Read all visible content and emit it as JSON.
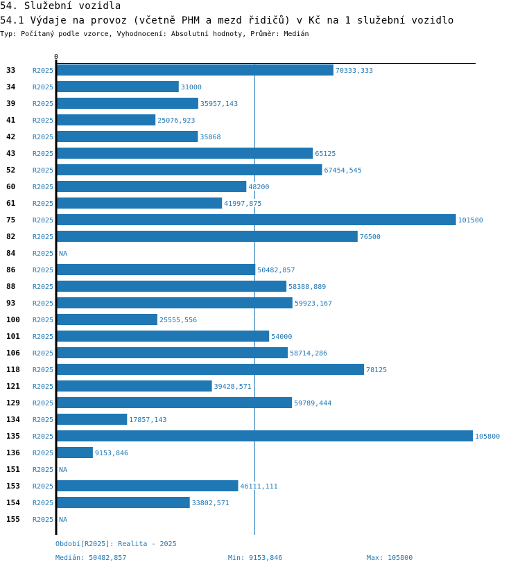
{
  "header": {
    "section_title": "54. Služební vozidla",
    "chart_title": "54.1 Výdaje na provoz (včetně PHM a mezd řidičů) v Kč na 1 služební vozidlo",
    "subtitle": "Typ: Počítaný podle vzorce, Vyhodnocení: Absolutní hodnoty, Průměr: Medián"
  },
  "footer": {
    "period": "Období[R2025]: Realita - 2025",
    "median": "Medián: 50482,857",
    "min": "Min: 9153,846",
    "max": "Max: 105800"
  },
  "colors": {
    "bar": "#1f77b4",
    "text_accent": "#1f77b4",
    "axis": "#000000"
  },
  "chart_data": {
    "type": "bar",
    "orientation": "horizontal",
    "title": "54.1 Výdaje na provoz (včetně PHM a mezd řidičů) v Kč na 1 služební vozidlo",
    "xlabel": "",
    "ylabel": "",
    "x_tick_labels": [
      "0"
    ],
    "xlim": [
      0,
      105800
    ],
    "grid": false,
    "reference_line": {
      "name": "Medián",
      "value": 50482.857
    },
    "series": [
      {
        "name": "R2025",
        "period": "R2025"
      }
    ],
    "rows": [
      {
        "id": "33",
        "period": "R2025",
        "value": 70333.333,
        "label": "70333,333"
      },
      {
        "id": "34",
        "period": "R2025",
        "value": 31000,
        "label": "31000"
      },
      {
        "id": "39",
        "period": "R2025",
        "value": 35957.143,
        "label": "35957,143"
      },
      {
        "id": "41",
        "period": "R2025",
        "value": 25076.923,
        "label": "25076,923"
      },
      {
        "id": "42",
        "period": "R2025",
        "value": 35868,
        "label": "35868"
      },
      {
        "id": "43",
        "period": "R2025",
        "value": 65125,
        "label": "65125"
      },
      {
        "id": "52",
        "period": "R2025",
        "value": 67454.545,
        "label": "67454,545"
      },
      {
        "id": "60",
        "period": "R2025",
        "value": 48200,
        "label": "48200"
      },
      {
        "id": "61",
        "period": "R2025",
        "value": 41997.875,
        "label": "41997,875"
      },
      {
        "id": "75",
        "period": "R2025",
        "value": 101500,
        "label": "101500"
      },
      {
        "id": "82",
        "period": "R2025",
        "value": 76500,
        "label": "76500"
      },
      {
        "id": "84",
        "period": "R2025",
        "value": null,
        "label": "NA"
      },
      {
        "id": "86",
        "period": "R2025",
        "value": 50482.857,
        "label": "50482,857"
      },
      {
        "id": "88",
        "period": "R2025",
        "value": 58388.889,
        "label": "58388,889"
      },
      {
        "id": "93",
        "period": "R2025",
        "value": 59923.167,
        "label": "59923,167"
      },
      {
        "id": "100",
        "period": "R2025",
        "value": 25555.556,
        "label": "25555,556"
      },
      {
        "id": "101",
        "period": "R2025",
        "value": 54000,
        "label": "54000"
      },
      {
        "id": "106",
        "period": "R2025",
        "value": 58714.286,
        "label": "58714,286"
      },
      {
        "id": "118",
        "period": "R2025",
        "value": 78125,
        "label": "78125"
      },
      {
        "id": "121",
        "period": "R2025",
        "value": 39428.571,
        "label": "39428,571"
      },
      {
        "id": "129",
        "period": "R2025",
        "value": 59789.444,
        "label": "59789,444"
      },
      {
        "id": "134",
        "period": "R2025",
        "value": 17857.143,
        "label": "17857,143"
      },
      {
        "id": "135",
        "period": "R2025",
        "value": 105800,
        "label": "105800"
      },
      {
        "id": "136",
        "period": "R2025",
        "value": 9153.846,
        "label": "9153,846"
      },
      {
        "id": "151",
        "period": "R2025",
        "value": null,
        "label": "NA"
      },
      {
        "id": "153",
        "period": "R2025",
        "value": 46111.111,
        "label": "46111,111"
      },
      {
        "id": "154",
        "period": "R2025",
        "value": 33802.571,
        "label": "33802,571"
      },
      {
        "id": "155",
        "period": "R2025",
        "value": null,
        "label": "NA"
      }
    ]
  }
}
